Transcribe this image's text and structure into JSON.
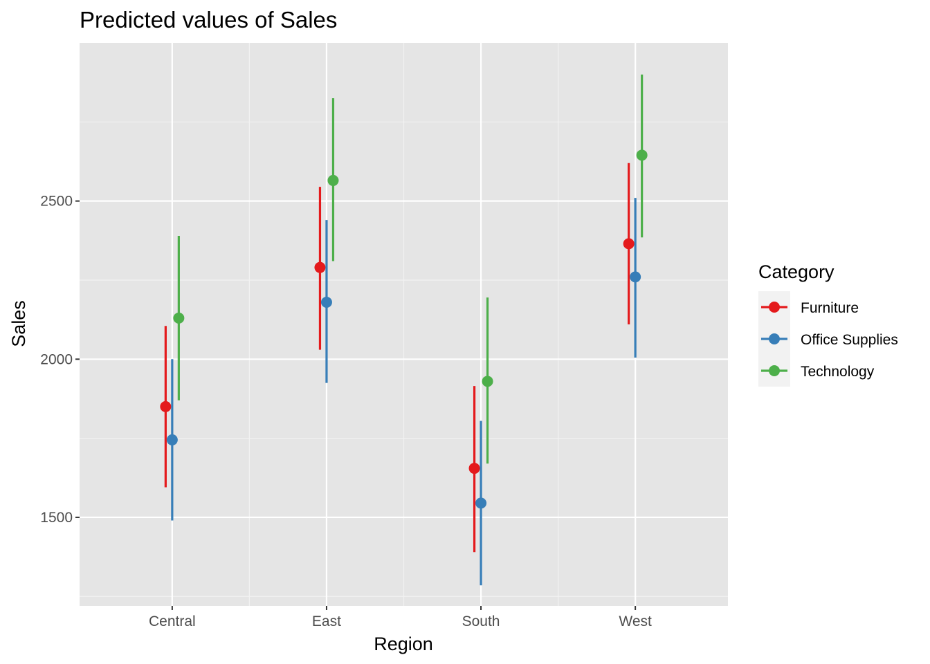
{
  "chart_data": {
    "type": "scatter",
    "subtype": "pointrange",
    "title": "Predicted values of Sales",
    "xlabel": "Region",
    "ylabel": "Sales",
    "categories": [
      "Central",
      "East",
      "South",
      "West"
    ],
    "ylim": [
      1220,
      3000
    ],
    "yticks": [
      1500,
      2000,
      2500
    ],
    "grid": true,
    "legend": {
      "title": "Category",
      "position": "right"
    },
    "series": [
      {
        "name": "Furniture",
        "color": "#e41a1c",
        "values": [
          1850,
          2290,
          1655,
          2365
        ],
        "lower": [
          1595,
          2030,
          1390,
          2110
        ],
        "upper": [
          2105,
          2545,
          1915,
          2620
        ]
      },
      {
        "name": "Office Supplies",
        "color": "#377eb8",
        "values": [
          1745,
          2180,
          1545,
          2260
        ],
        "lower": [
          1490,
          1925,
          1285,
          2005
        ],
        "upper": [
          2000,
          2440,
          1805,
          2510
        ]
      },
      {
        "name": "Technology",
        "color": "#4daf4a",
        "values": [
          2130,
          2565,
          1930,
          2645
        ],
        "lower": [
          1870,
          2310,
          1670,
          2385
        ],
        "upper": [
          2390,
          2825,
          2195,
          2900
        ]
      }
    ]
  }
}
